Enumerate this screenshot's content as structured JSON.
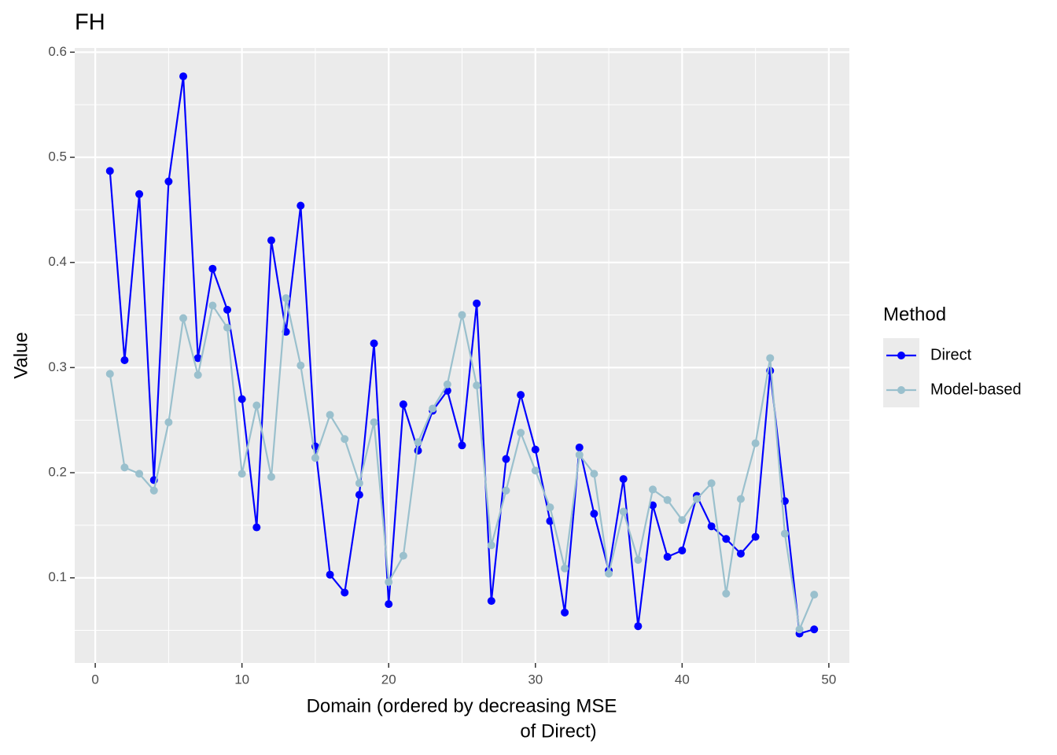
{
  "chart_data": {
    "type": "line",
    "title": "FH",
    "x_label": [
      "Domain (ordered by decreasing MSE",
      "of Direct)"
    ],
    "y_label": "Value",
    "legend_title": "Method",
    "legend": "right",
    "grid": true,
    "x": [
      1,
      2,
      3,
      4,
      5,
      6,
      7,
      8,
      9,
      10,
      11,
      12,
      13,
      14,
      15,
      16,
      17,
      18,
      19,
      20,
      21,
      22,
      23,
      24,
      25,
      26,
      27,
      28,
      29,
      30,
      31,
      32,
      33,
      34,
      35,
      36,
      37,
      38,
      39,
      40,
      41,
      42,
      43,
      44,
      45,
      46,
      47,
      48,
      49
    ],
    "series": [
      {
        "name": "Direct",
        "color": "#0000ff",
        "values": [
          0.487,
          0.307,
          0.465,
          0.193,
          0.477,
          0.577,
          0.309,
          0.394,
          0.355,
          0.27,
          0.148,
          0.421,
          0.334,
          0.454,
          0.225,
          0.103,
          0.086,
          0.179,
          0.323,
          0.075,
          0.265,
          0.221,
          0.259,
          0.278,
          0.226,
          0.361,
          0.078,
          0.213,
          0.274,
          0.222,
          0.154,
          0.067,
          0.224,
          0.161,
          0.107,
          0.194,
          0.054,
          0.169,
          0.12,
          0.126,
          0.178,
          0.149,
          0.137,
          0.123,
          0.139,
          0.297,
          0.173,
          0.047,
          0.051
        ]
      },
      {
        "name": "Model-based",
        "color": "#9ac0cd",
        "values": [
          0.294,
          0.205,
          0.199,
          0.183,
          0.248,
          0.347,
          0.293,
          0.359,
          0.338,
          0.199,
          0.264,
          0.196,
          0.366,
          0.302,
          0.214,
          0.255,
          0.232,
          0.19,
          0.248,
          0.096,
          0.121,
          0.229,
          0.261,
          0.284,
          0.35,
          0.283,
          0.131,
          0.183,
          0.238,
          0.202,
          0.167,
          0.109,
          0.217,
          0.199,
          0.104,
          0.163,
          0.117,
          0.184,
          0.174,
          0.155,
          0.175,
          0.19,
          0.085,
          0.175,
          0.228,
          0.309,
          0.142,
          0.051,
          0.084
        ]
      }
    ],
    "xlim": [
      -1.4,
      51.4
    ],
    "xticks": [
      0,
      10,
      20,
      30,
      40,
      50
    ],
    "ylim": [
      0.019,
      0.604
    ],
    "yticks": [
      0.1,
      0.2,
      0.3,
      0.4,
      0.5,
      0.6
    ]
  }
}
